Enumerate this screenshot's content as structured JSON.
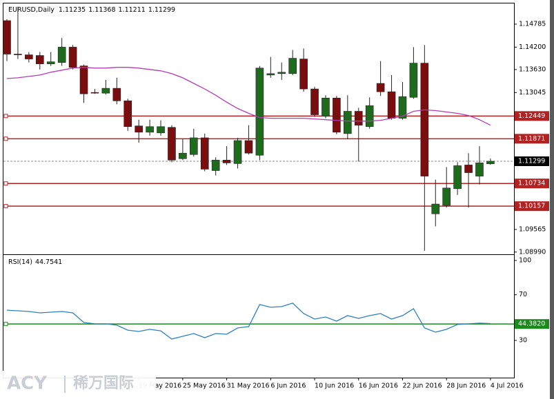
{
  "chart_data": [
    {
      "type": "candlestick",
      "title": "EURUSD,Daily",
      "categories": [
        null,
        null,
        null,
        null,
        null,
        null,
        null,
        null,
        null,
        null,
        null,
        null,
        "19 May 2016",
        null,
        null,
        null,
        "25 May 2016",
        null,
        null,
        null,
        "31 May 2016",
        null,
        null,
        null,
        "6 Jun 2016",
        null,
        null,
        null,
        "10 Jun 2016",
        null,
        null,
        null,
        "16 Jun 2016",
        null,
        null,
        null,
        "22 Jun 2016",
        null,
        null,
        null,
        "28 Jun 2016",
        null,
        null,
        null,
        "4 Jul 2016"
      ],
      "open": [
        1.14874,
        1.14023,
        1.14005,
        1.13988,
        1.13775,
        1.1381,
        1.142,
        1.13722,
        1.13048,
        1.1303,
        1.13154,
        1.12835,
        1.12197,
        1.12037,
        1.1202,
        1.12161,
        1.11364,
        1.1147,
        1.11895,
        1.11062,
        1.11328,
        1.1124,
        1.11825,
        1.11452,
        1.13491,
        1.13527,
        1.13527,
        1.13899,
        1.13137,
        1.12445,
        1.12906,
        1.12002,
        1.12569,
        1.12179,
        1.13278,
        1.13066,
        1.12392,
        1.12924,
        1.13793,
        1.09963,
        1.10176,
        1.10601,
        1.11204,
        1.1092,
        1.11235
      ],
      "high": [
        1.1491,
        1.15229,
        1.14076,
        1.14076,
        1.14076,
        1.14431,
        1.14254,
        1.13757,
        1.13137,
        1.13367,
        1.1342,
        1.12888,
        1.12356,
        1.12356,
        1.12339,
        1.12215,
        1.1186,
        1.12126,
        1.12002,
        1.11399,
        1.11683,
        1.11895,
        1.12215,
        1.13722,
        1.13952,
        1.1381,
        1.14129,
        1.14165,
        1.1319,
        1.12977,
        1.12959,
        1.12977,
        1.12658,
        1.12924,
        1.13846,
        1.13491,
        1.13314,
        1.142,
        1.14254,
        1.10832,
        1.11151,
        1.11275,
        1.11505,
        1.11683,
        1.11368
      ],
      "low": [
        1.13846,
        1.13899,
        1.1381,
        1.13633,
        1.13722,
        1.13722,
        1.13633,
        1.12782,
        1.13012,
        1.12995,
        1.12746,
        1.12073,
        1.11771,
        1.11949,
        1.11949,
        1.11275,
        1.11328,
        1.11417,
        1.11044,
        1.10938,
        1.11204,
        1.11115,
        1.1147,
        1.11328,
        1.1342,
        1.13367,
        1.13491,
        1.13066,
        1.12427,
        1.12392,
        1.11984,
        1.1186,
        1.11293,
        1.12126,
        1.12959,
        1.12356,
        1.12356,
        1.12888,
        1.09023,
        1.09644,
        1.10122,
        1.10442,
        1.10122,
        1.10708,
        1.11211
      ],
      "close": [
        1.14023,
        1.14005,
        1.13899,
        1.13775,
        1.13828,
        1.142,
        1.13686,
        1.13012,
        1.1303,
        1.13154,
        1.12835,
        1.12179,
        1.12037,
        1.12179,
        1.12179,
        1.11328,
        1.11505,
        1.11895,
        1.11098,
        1.11328,
        1.11257,
        1.11825,
        1.11505,
        1.13668,
        1.13527,
        1.13562,
        1.13917,
        1.13137,
        1.12481,
        1.12906,
        1.12037,
        1.12569,
        1.12215,
        1.12711,
        1.13066,
        1.12392,
        1.12942,
        1.13793,
        1.1092,
        1.10211,
        1.10619,
        1.11186,
        1.11009,
        1.11257,
        1.11299
      ],
      "up_color": "#1e6b1e",
      "down_color": "#7a0d0d",
      "series": [
        {
          "color": "#b43cb4",
          "values": [
            1.13402,
            1.1342,
            1.13456,
            1.13491,
            1.13562,
            1.13615,
            1.13668,
            1.13686,
            1.13668,
            1.13668,
            1.13686,
            1.13686,
            1.13668,
            1.13633,
            1.13597,
            1.13527,
            1.1342,
            1.13278,
            1.13137,
            1.12977,
            1.128,
            1.1264,
            1.12516,
            1.1241,
            1.12392,
            1.12392,
            1.12392,
            1.12392,
            1.12374,
            1.12356,
            1.12339,
            1.12321,
            1.12321,
            1.12321,
            1.12339,
            1.12392,
            1.12445,
            1.12569,
            1.12605,
            1.12587,
            1.12552,
            1.12516,
            1.12463,
            1.12356,
            1.12215
          ]
        }
      ],
      "levels": [
        {
          "value": 1.12449,
          "color": "#b22222"
        },
        {
          "value": 1.11871,
          "color": "#b22222"
        },
        {
          "value": 1.10734,
          "color": "#b22222"
        },
        {
          "value": 1.10157,
          "color": "#b22222"
        }
      ],
      "ylim": [
        1.08951,
        1.15311
      ],
      "yticks": [
        {
          "value": 1.14785,
          "label": "1.14785"
        },
        {
          "value": 1.142,
          "label": "1.14200"
        },
        {
          "value": 1.1363,
          "label": "1.13630"
        },
        {
          "value": 1.13045,
          "label": "1.13045"
        },
        {
          "value": 1.09565,
          "label": "1.09565"
        },
        {
          "value": 1.0899,
          "label": "1.08990"
        }
      ]
    },
    {
      "type": "line",
      "title": "RSI(14)",
      "series": [
        {
          "color": "#2f7fc1",
          "values": [
            56.5,
            55.9,
            55.3,
            54.1,
            54.7,
            55.3,
            54.1,
            45.7,
            44.5,
            44.5,
            43.3,
            39.0,
            37.8,
            39.7,
            38.4,
            31.2,
            33.6,
            36.0,
            32.4,
            36.0,
            35.4,
            40.9,
            42.1,
            61.4,
            59.0,
            59.6,
            62.6,
            53.5,
            48.7,
            50.5,
            46.9,
            51.7,
            49.3,
            51.7,
            53.5,
            48.7,
            51.7,
            57.8,
            40.9,
            37.2,
            39.7,
            43.9,
            44.5,
            45.1,
            44.7541
          ]
        }
      ],
      "levels": [
        {
          "value": 44.382,
          "label": "44.3820",
          "color": "#1a8a1a"
        }
      ],
      "ylim": [
        -2.6,
        104.2
      ],
      "yticks": [
        100,
        70,
        30
      ]
    }
  ],
  "watermark": [
    "ACY",
    "稀万国际"
  ]
}
